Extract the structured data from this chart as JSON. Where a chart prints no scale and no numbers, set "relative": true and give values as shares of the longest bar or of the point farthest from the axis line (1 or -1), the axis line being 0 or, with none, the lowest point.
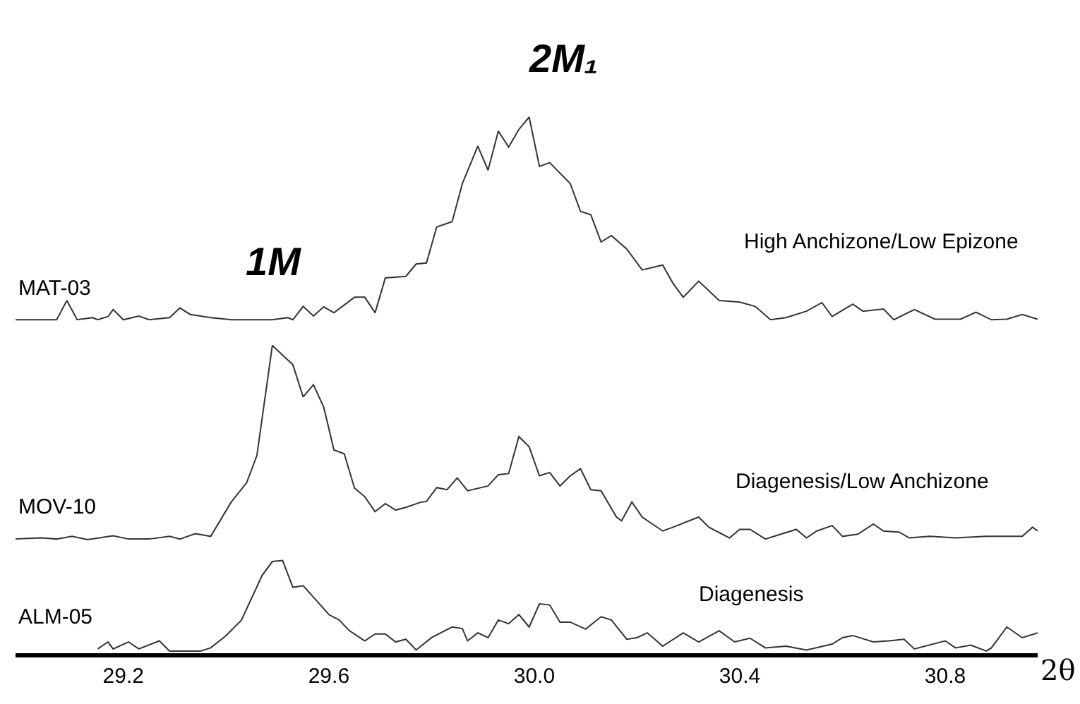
{
  "chart_data": {
    "type": "line",
    "relative": true,
    "xlabel": "2θ",
    "xlim": [
      28.99,
      30.98
    ],
    "xticks": [
      29.2,
      29.6,
      {
        "value": 30.0,
        "label": "30.0"
      },
      30.4,
      30.8
    ],
    "tick_labels": "x",
    "legend": false,
    "marker": "none",
    "line_style": "solid",
    "series": [
      {
        "name": "MAT-03",
        "color": "#333333",
        "x": [
          28.99,
          29.07,
          29.09,
          29.11,
          29.14,
          29.15,
          29.17,
          29.18,
          29.2,
          29.23,
          29.25,
          29.29,
          29.31,
          29.33,
          29.37,
          29.41,
          29.49,
          29.52,
          29.53,
          29.55,
          29.57,
          29.59,
          29.61,
          29.65,
          29.67,
          29.69,
          29.71,
          29.75,
          29.77,
          29.79,
          29.81,
          29.84,
          29.86,
          29.89,
          29.91,
          29.93,
          29.95,
          29.97,
          29.99,
          30.01,
          30.03,
          30.07,
          30.09,
          30.11,
          30.13,
          30.15,
          30.18,
          30.21,
          30.25,
          30.27,
          30.29,
          30.32,
          30.36,
          30.4,
          30.43,
          30.46,
          30.49,
          30.53,
          30.56,
          30.58,
          30.62,
          30.64,
          30.68,
          30.7,
          30.74,
          30.78,
          30.83,
          30.86,
          30.89,
          30.92,
          30.95,
          30.98
        ],
        "values": [
          0.622,
          0.622,
          0.658,
          0.622,
          0.626,
          0.622,
          0.628,
          0.641,
          0.622,
          0.629,
          0.622,
          0.626,
          0.644,
          0.632,
          0.626,
          0.622,
          0.622,
          0.626,
          0.622,
          0.647,
          0.629,
          0.646,
          0.635,
          0.664,
          0.664,
          0.635,
          0.7,
          0.703,
          0.726,
          0.728,
          0.795,
          0.805,
          0.876,
          0.946,
          0.901,
          0.974,
          0.944,
          0.977,
          1.0,
          0.908,
          0.915,
          0.876,
          0.824,
          0.818,
          0.767,
          0.779,
          0.754,
          0.715,
          0.724,
          0.69,
          0.664,
          0.694,
          0.658,
          0.655,
          0.647,
          0.622,
          0.626,
          0.638,
          0.654,
          0.628,
          0.651,
          0.638,
          0.642,
          0.622,
          0.641,
          0.623,
          0.623,
          0.636,
          0.622,
          0.623,
          0.632,
          0.623
        ]
      },
      {
        "name": "MOV-10",
        "color": "#333333",
        "x": [
          28.99,
          29.04,
          29.07,
          29.1,
          29.13,
          29.18,
          29.21,
          29.25,
          29.29,
          29.31,
          29.34,
          29.37,
          29.41,
          29.44,
          29.46,
          29.49,
          29.53,
          29.55,
          29.57,
          29.59,
          29.61,
          29.63,
          29.65,
          29.67,
          29.69,
          29.71,
          29.73,
          29.75,
          29.78,
          29.79,
          29.81,
          29.83,
          29.85,
          29.87,
          29.91,
          29.93,
          29.95,
          29.97,
          29.99,
          30.01,
          30.03,
          30.05,
          30.07,
          30.09,
          30.11,
          30.13,
          30.16,
          30.17,
          30.19,
          30.21,
          30.25,
          30.27,
          30.32,
          30.34,
          30.38,
          30.4,
          30.42,
          30.45,
          30.48,
          30.51,
          30.53,
          30.55,
          30.58,
          30.6,
          30.63,
          30.66,
          30.68,
          30.71,
          30.73,
          30.77,
          30.82,
          30.88,
          30.95,
          30.97,
          30.98
        ],
        "values": [
          0.213,
          0.215,
          0.213,
          0.218,
          0.212,
          0.219,
          0.213,
          0.213,
          0.218,
          0.213,
          0.223,
          0.218,
          0.282,
          0.318,
          0.369,
          0.574,
          0.538,
          0.478,
          0.501,
          0.459,
          0.379,
          0.372,
          0.308,
          0.292,
          0.264,
          0.279,
          0.267,
          0.272,
          0.282,
          0.283,
          0.309,
          0.305,
          0.327,
          0.303,
          0.312,
          0.333,
          0.335,
          0.404,
          0.385,
          0.331,
          0.337,
          0.312,
          0.331,
          0.344,
          0.305,
          0.303,
          0.254,
          0.247,
          0.282,
          0.254,
          0.228,
          0.235,
          0.254,
          0.235,
          0.215,
          0.231,
          0.231,
          0.213,
          0.222,
          0.231,
          0.215,
          0.228,
          0.238,
          0.218,
          0.222,
          0.241,
          0.228,
          0.226,
          0.215,
          0.218,
          0.215,
          0.218,
          0.218,
          0.235,
          0.228
        ]
      },
      {
        "name": "ALM-05",
        "color": "#333333",
        "x": [
          29.15,
          29.17,
          29.18,
          29.21,
          29.23,
          29.27,
          29.29,
          29.35,
          29.37,
          29.4,
          29.43,
          29.47,
          29.49,
          29.51,
          29.53,
          29.55,
          29.58,
          29.6,
          29.62,
          29.64,
          29.67,
          29.69,
          29.71,
          29.73,
          29.75,
          29.77,
          29.8,
          29.84,
          29.86,
          29.87,
          29.89,
          29.91,
          29.93,
          29.95,
          29.97,
          29.99,
          30.01,
          30.03,
          30.05,
          30.07,
          30.1,
          30.13,
          30.15,
          30.18,
          30.2,
          30.22,
          30.25,
          30.29,
          30.32,
          30.36,
          30.39,
          30.42,
          30.45,
          30.49,
          30.53,
          30.58,
          30.6,
          30.62,
          30.66,
          30.69,
          30.72,
          30.74,
          30.8,
          30.82,
          30.85,
          30.88,
          30.89,
          30.92,
          30.95,
          30.98
        ],
        "values": [
          0.008,
          0.021,
          0.008,
          0.021,
          0.008,
          0.023,
          0.004,
          0.004,
          0.01,
          0.033,
          0.062,
          0.145,
          0.171,
          0.173,
          0.123,
          0.126,
          0.094,
          0.072,
          0.062,
          0.042,
          0.023,
          0.036,
          0.036,
          0.021,
          0.026,
          0.006,
          0.029,
          0.049,
          0.046,
          0.023,
          0.038,
          0.029,
          0.062,
          0.055,
          0.072,
          0.049,
          0.092,
          0.09,
          0.058,
          0.058,
          0.045,
          0.068,
          0.062,
          0.026,
          0.029,
          0.038,
          0.013,
          0.038,
          0.021,
          0.042,
          0.021,
          0.028,
          0.01,
          0.013,
          0.006,
          0.017,
          0.029,
          0.033,
          0.021,
          0.023,
          0.026,
          0.008,
          0.023,
          0.01,
          0.015,
          0.004,
          0.01,
          0.049,
          0.029,
          0.038
        ]
      }
    ],
    "annotations": [
      "1M",
      "2M₁",
      "High Anchizone/Low Epizone",
      "Diagenesis/Low Anchizone",
      "Diagenesis"
    ]
  }
}
